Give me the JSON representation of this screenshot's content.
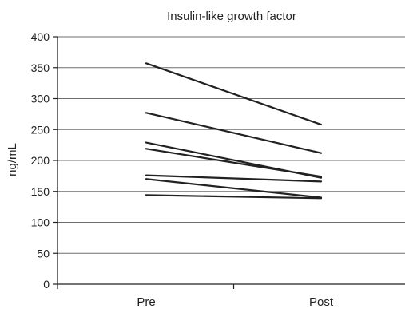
{
  "chart_data": {
    "type": "line",
    "title": "Insulin-like growth factor",
    "xlabel": "",
    "ylabel": "ng/mL",
    "categories": [
      "Pre",
      "Post"
    ],
    "ylim": [
      0,
      400
    ],
    "yticks": [
      0,
      50,
      100,
      150,
      200,
      250,
      300,
      350,
      400
    ],
    "grid": true,
    "legend": "none",
    "series": [
      {
        "values": [
          357,
          258
        ]
      },
      {
        "values": [
          277,
          212
        ]
      },
      {
        "values": [
          229,
          172
        ]
      },
      {
        "values": [
          219,
          174
        ]
      },
      {
        "values": [
          176,
          166
        ]
      },
      {
        "values": [
          170,
          140
        ]
      },
      {
        "values": [
          144,
          139
        ]
      }
    ]
  },
  "colors": {
    "line": "#222222",
    "grid": "#6e6e6e",
    "axis": "#222222"
  }
}
